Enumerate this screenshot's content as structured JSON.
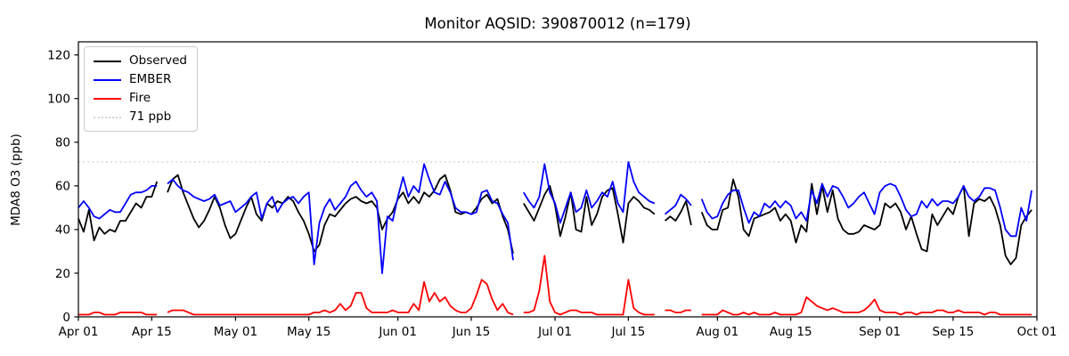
{
  "figure": {
    "background_color": "#ffffff"
  },
  "chart_data": {
    "type": "line",
    "title": "Monitor AQSID: 390870012 (n=179)",
    "ylabel": "MDA8 O3 (ppb)",
    "xlabel": "",
    "ylim": [
      0,
      126
    ],
    "yticks": [
      0,
      20,
      40,
      60,
      80,
      100,
      120
    ],
    "x_unit": "days since Apr 01",
    "x_max": 183,
    "xticks": [
      {
        "pos": 0,
        "label": "Apr 01"
      },
      {
        "pos": 14,
        "label": "Apr 15"
      },
      {
        "pos": 30,
        "label": "May 01"
      },
      {
        "pos": 44,
        "label": "May 15"
      },
      {
        "pos": 61,
        "label": "Jun 01"
      },
      {
        "pos": 75,
        "label": "Jun 15"
      },
      {
        "pos": 91,
        "label": "Jul 01"
      },
      {
        "pos": 105,
        "label": "Jul 15"
      },
      {
        "pos": 122,
        "label": "Aug 01"
      },
      {
        "pos": 136,
        "label": "Aug 15"
      },
      {
        "pos": 153,
        "label": "Sep 01"
      },
      {
        "pos": 167,
        "label": "Sep 15"
      },
      {
        "pos": 183,
        "label": "Oct 01"
      }
    ],
    "threshold": {
      "value": 71,
      "label": "71 ppb",
      "color": "#d3d3d3",
      "style": "dotted"
    },
    "grid": false,
    "legend_position": "upper left",
    "series": [
      {
        "name": "Observed",
        "color": "#000000",
        "values": [
          45,
          39,
          49,
          35,
          41,
          38,
          40,
          39,
          44,
          44,
          48,
          52,
          50,
          55,
          55,
          62,
          null,
          57,
          63,
          65,
          57,
          51,
          45,
          41,
          44,
          49,
          55,
          50,
          42,
          36,
          38,
          44,
          50,
          55,
          47,
          44,
          52,
          50,
          53,
          52,
          55,
          53,
          48,
          44,
          38,
          30,
          33,
          42,
          47,
          46,
          49,
          52,
          54,
          55,
          53,
          52,
          53,
          50,
          40,
          45,
          48,
          54,
          57,
          52,
          55,
          52,
          57,
          55,
          58,
          63,
          65,
          58,
          48,
          47,
          48,
          47,
          50,
          54,
          56,
          52,
          54,
          46,
          40,
          29,
          null,
          52,
          48,
          44,
          50,
          56,
          60,
          51,
          37,
          46,
          57,
          40,
          39,
          55,
          42,
          47,
          55,
          58,
          59,
          47,
          34,
          52,
          55,
          53,
          50,
          49,
          47,
          null,
          44,
          46,
          44,
          48,
          53,
          42,
          null,
          48,
          42,
          40,
          40,
          49,
          50,
          63,
          55,
          40,
          37,
          45,
          46,
          47,
          48,
          50,
          44,
          47,
          44,
          34,
          42,
          39,
          61,
          47,
          60,
          48,
          58,
          45,
          40,
          38,
          38,
          39,
          42,
          41,
          40,
          42,
          52,
          50,
          52,
          48,
          40,
          46,
          38,
          31,
          30,
          47,
          42,
          46,
          50,
          47,
          55,
          60,
          37,
          52,
          54,
          53,
          55,
          50,
          42,
          28,
          24,
          27,
          42,
          46,
          49
        ]
      },
      {
        "name": "EMBER",
        "color": "#0000ff",
        "values": [
          50,
          53,
          50,
          46,
          45,
          47,
          49,
          48,
          48,
          52,
          56,
          57,
          57,
          58,
          60,
          60,
          null,
          61,
          63,
          60,
          58,
          57,
          55,
          54,
          53,
          54,
          56,
          51,
          52,
          53,
          48,
          50,
          52,
          55,
          57,
          45,
          52,
          55,
          48,
          52,
          54,
          55,
          52,
          55,
          57,
          24,
          43,
          50,
          54,
          49,
          52,
          55,
          60,
          62,
          58,
          55,
          57,
          53,
          20,
          46,
          44,
          55,
          64,
          55,
          60,
          57,
          70,
          63,
          57,
          56,
          62,
          57,
          50,
          48,
          48,
          47,
          48,
          57,
          58,
          53,
          52,
          47,
          43,
          26,
          null,
          57,
          53,
          50,
          55,
          70,
          57,
          52,
          43,
          50,
          57,
          48,
          50,
          58,
          50,
          53,
          57,
          55,
          62,
          52,
          48,
          71,
          62,
          57,
          55,
          53,
          52,
          null,
          47,
          49,
          51,
          56,
          54,
          51,
          null,
          54,
          48,
          45,
          46,
          52,
          56,
          58,
          58,
          50,
          43,
          48,
          46,
          52,
          50,
          53,
          50,
          53,
          51,
          45,
          48,
          44,
          58,
          52,
          61,
          55,
          60,
          59,
          55,
          50,
          52,
          55,
          57,
          52,
          47,
          57,
          60,
          61,
          60,
          55,
          49,
          46,
          47,
          53,
          50,
          54,
          51,
          53,
          53,
          52,
          55,
          60,
          55,
          53,
          55,
          59,
          59,
          58,
          50,
          40,
          37,
          37,
          50,
          44,
          58
        ]
      },
      {
        "name": "Fire",
        "color": "#ff0000",
        "values": [
          1,
          1,
          1,
          2,
          2,
          1,
          1,
          1,
          2,
          2,
          2,
          2,
          2,
          1,
          1,
          1,
          null,
          2,
          3,
          3,
          3,
          2,
          1,
          1,
          1,
          1,
          1,
          1,
          1,
          1,
          1,
          1,
          1,
          1,
          1,
          1,
          1,
          1,
          1,
          1,
          1,
          1,
          1,
          1,
          1,
          2,
          2,
          3,
          2,
          3,
          6,
          3,
          5,
          11,
          11,
          4,
          2,
          2,
          2,
          2,
          3,
          2,
          2,
          2,
          6,
          3,
          16,
          7,
          11,
          7,
          9,
          5,
          3,
          2,
          2,
          4,
          10,
          17,
          15,
          8,
          3,
          6,
          2,
          1,
          null,
          2,
          2,
          3,
          12,
          28,
          7,
          2,
          1,
          2,
          3,
          3,
          2,
          2,
          2,
          1,
          1,
          1,
          1,
          1,
          1,
          17,
          4,
          2,
          1,
          1,
          1,
          null,
          3,
          3,
          2,
          2,
          3,
          3,
          null,
          1,
          1,
          1,
          1,
          3,
          2,
          1,
          1,
          2,
          1,
          2,
          1,
          1,
          1,
          2,
          1,
          1,
          1,
          1,
          2,
          9,
          7,
          5,
          4,
          3,
          4,
          3,
          2,
          2,
          2,
          2,
          3,
          5,
          8,
          3,
          2,
          2,
          2,
          1,
          2,
          2,
          1,
          2,
          2,
          2,
          3,
          3,
          2,
          2,
          3,
          2,
          2,
          2,
          2,
          1,
          2,
          2,
          1,
          1,
          1,
          1,
          1,
          1,
          1
        ]
      }
    ]
  },
  "legend": {
    "items": [
      "Observed",
      "EMBER",
      "Fire",
      "71 ppb"
    ]
  }
}
